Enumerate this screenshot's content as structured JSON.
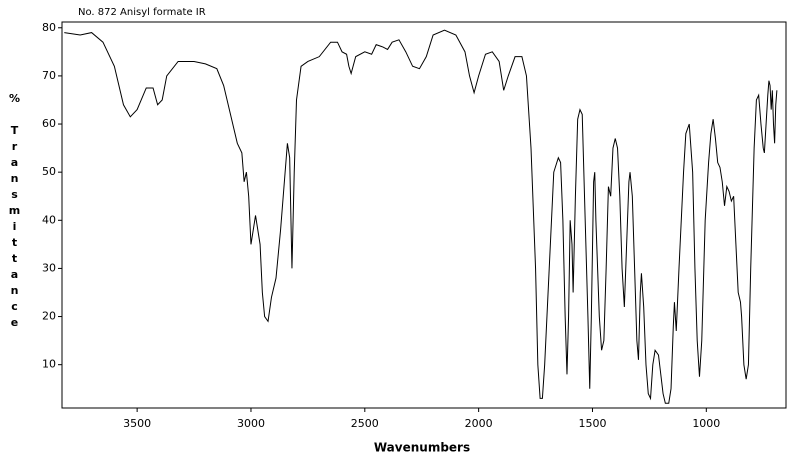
{
  "chart_data": {
    "type": "line",
    "title": "No. 872 Anisyl formate IR",
    "xlabel": "Wavenumbers",
    "ylabel_symbol": "%",
    "ylabel": "Transmittance",
    "xlim": [
      3830,
      650
    ],
    "ylim": [
      1,
      81.2
    ],
    "xticks": [
      3500,
      3000,
      2500,
      2000,
      1500,
      1000
    ],
    "yticks": [
      10,
      20,
      30,
      40,
      50,
      60,
      70,
      80
    ],
    "grid": false,
    "x": [
      3820,
      3750,
      3700,
      3650,
      3600,
      3560,
      3530,
      3500,
      3460,
      3430,
      3410,
      3390,
      3370,
      3320,
      3250,
      3200,
      3150,
      3120,
      3090,
      3060,
      3040,
      3030,
      3020,
      3010,
      3000,
      2990,
      2980,
      2960,
      2950,
      2940,
      2925,
      2910,
      2890,
      2870,
      2850,
      2840,
      2830,
      2820,
      2810,
      2800,
      2780,
      2750,
      2700,
      2650,
      2620,
      2600,
      2580,
      2570,
      2560,
      2540,
      2500,
      2470,
      2450,
      2420,
      2400,
      2380,
      2350,
      2320,
      2290,
      2260,
      2230,
      2200,
      2150,
      2100,
      2060,
      2040,
      2020,
      2000,
      1970,
      1940,
      1910,
      1890,
      1870,
      1840,
      1810,
      1790,
      1770,
      1750,
      1740,
      1730,
      1720,
      1710,
      1690,
      1670,
      1650,
      1640,
      1630,
      1620,
      1612,
      1605,
      1598,
      1590,
      1585,
      1575,
      1565,
      1555,
      1545,
      1535,
      1520,
      1512,
      1505,
      1495,
      1490,
      1485,
      1470,
      1460,
      1450,
      1440,
      1430,
      1420,
      1410,
      1400,
      1390,
      1380,
      1370,
      1360,
      1350,
      1340,
      1335,
      1325,
      1315,
      1305,
      1298,
      1290,
      1285,
      1275,
      1265,
      1255,
      1245,
      1235,
      1225,
      1210,
      1200,
      1190,
      1180,
      1165,
      1155,
      1145,
      1140,
      1132,
      1120,
      1100,
      1090,
      1075,
      1060,
      1050,
      1040,
      1030,
      1020,
      1005,
      990,
      980,
      970,
      960,
      950,
      940,
      930,
      920,
      910,
      900,
      890,
      880,
      870,
      860,
      850,
      845,
      835,
      825,
      815,
      805,
      790,
      780,
      770,
      760,
      750,
      745,
      740,
      730,
      725,
      720,
      715,
      710,
      705,
      700,
      695,
      690
    ],
    "series": [
      {
        "name": "Anisyl formate",
        "color": "#000000",
        "values": [
          79,
          78.5,
          79,
          77,
          72,
          64,
          61.5,
          63,
          67.5,
          67.5,
          64,
          65,
          70,
          73,
          73,
          72.5,
          71.5,
          68,
          62,
          56,
          54,
          48,
          50,
          45,
          35,
          38,
          41,
          35,
          25,
          20,
          19,
          24,
          28,
          38,
          50,
          56,
          53,
          30,
          50,
          65,
          72,
          73,
          74,
          77,
          77,
          75,
          74.5,
          72,
          70.5,
          74,
          75,
          74.5,
          76.5,
          76,
          75.5,
          77,
          77.5,
          75,
          72,
          71.5,
          74,
          78.5,
          79.5,
          78.5,
          75,
          70,
          66.5,
          70,
          74.5,
          75,
          73,
          67,
          70,
          74,
          74,
          70,
          55,
          30,
          10,
          3,
          3,
          10,
          30,
          50,
          53,
          52,
          40,
          20,
          8,
          20,
          40,
          35,
          25,
          45,
          61,
          63,
          62,
          45,
          20,
          5,
          20,
          48,
          50,
          40,
          20,
          13,
          15,
          30,
          47,
          45,
          55,
          57,
          55,
          45,
          30,
          22,
          35,
          48,
          50,
          45,
          30,
          15,
          11,
          25,
          29,
          22,
          10,
          4,
          3,
          10,
          13,
          12,
          8,
          4,
          2,
          2,
          5,
          18,
          23,
          17,
          30,
          50,
          58,
          60,
          50,
          30,
          15,
          7.5,
          15,
          40,
          52,
          58,
          61,
          57,
          52,
          51,
          48,
          43,
          47,
          46,
          44,
          45,
          35,
          25,
          23,
          20,
          10,
          7,
          10,
          30,
          55,
          65,
          66,
          60,
          55,
          54,
          58,
          66,
          69,
          68,
          63,
          67,
          60,
          56,
          64,
          67
        ]
      }
    ]
  }
}
